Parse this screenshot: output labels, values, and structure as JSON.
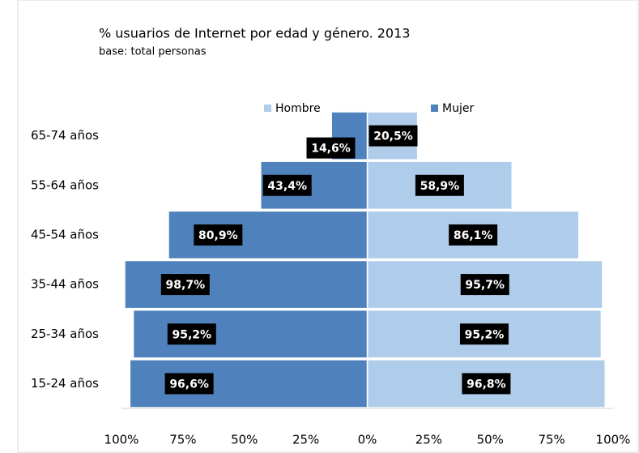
{
  "chart_data": {
    "type": "pyramid",
    "title": "% usuarios de Internet por edad y género. 2013",
    "subtitle": "base: total personas",
    "categories": [
      "65-74 años",
      "55-64 años",
      "45-54 años",
      "35-44 años",
      "25-34 años",
      "15-24 años"
    ],
    "series": [
      {
        "name": "Hombre",
        "color": "#afcdea",
        "side": "right",
        "values": [
          20.5,
          58.9,
          86.1,
          95.7,
          95.2,
          96.8
        ],
        "value_labels": [
          "20,5%",
          "58,9%",
          "86,1%",
          "95,7%",
          "95,2%",
          "96,8%"
        ]
      },
      {
        "name": "Mujer",
        "color": "#4f81bd",
        "side": "left",
        "values": [
          14.6,
          43.4,
          80.9,
          98.7,
          95.2,
          96.6
        ],
        "value_labels": [
          "14,6%",
          "43,4%",
          "80,9%",
          "98,7%",
          "95,2%",
          "96,6%"
        ]
      }
    ],
    "xlim": [
      -100,
      100
    ],
    "xticks": [
      {
        "value": -100,
        "label": "100%"
      },
      {
        "value": -75,
        "label": "75%"
      },
      {
        "value": -50,
        "label": "50%"
      },
      {
        "value": -25,
        "label": "25%"
      },
      {
        "value": 0,
        "label": "0%"
      },
      {
        "value": 25,
        "label": "25%"
      },
      {
        "value": 50,
        "label": "50%"
      },
      {
        "value": 75,
        "label": "75%"
      },
      {
        "value": 100,
        "label": "100%"
      }
    ],
    "legend": "top"
  }
}
